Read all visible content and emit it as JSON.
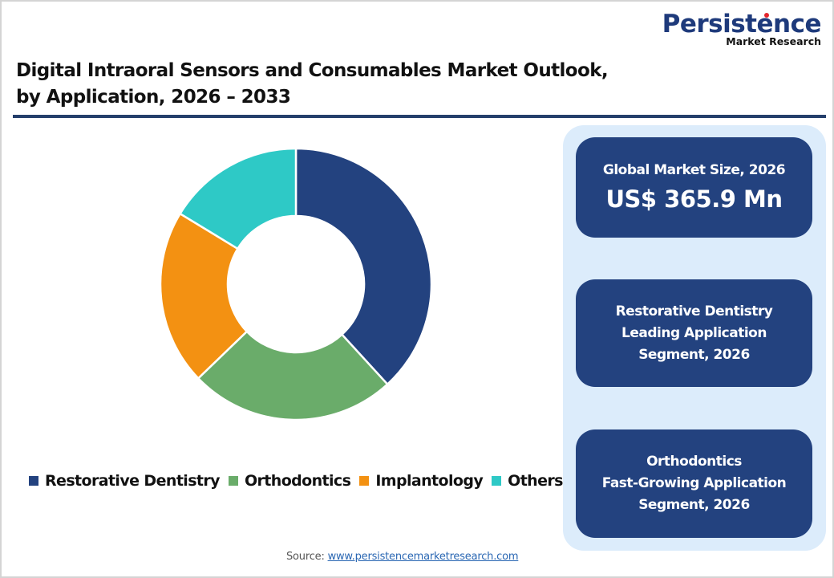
{
  "logo": {
    "main": "Persistence",
    "sub": "Market Research"
  },
  "title": {
    "line1": "Digital Intraoral Sensors and Consumables Market Outlook,",
    "line2": "by Application, 2026 – 2033"
  },
  "chart_data": {
    "type": "pie",
    "subtype": "donut",
    "title": "Digital Intraoral Sensors and Consumables Market Outlook, by Application, 2026 – 2033",
    "categories": [
      "Restorative Dentistry",
      "Orthodontics",
      "Implantology",
      "Others"
    ],
    "values": [
      38.2,
      24.6,
      20.9,
      16.3
    ],
    "unit": "% share (estimated from slice angles)",
    "colors": [
      "#23427f",
      "#6aac6a",
      "#f39112",
      "#2ec9c6"
    ],
    "start_angle": "12 o'clock, clockwise",
    "legend_position": "bottom",
    "data_labels": false
  },
  "legend": [
    {
      "label": "Restorative Dentistry",
      "color": "#23427f"
    },
    {
      "label": "Orthodontics",
      "color": "#6aac6a"
    },
    {
      "label": "Implantology",
      "color": "#f39112"
    },
    {
      "label": "Others",
      "color": "#2ec9c6"
    }
  ],
  "side_panel": {
    "market_size": {
      "label": "Global Market Size, 2026",
      "value": "US$ 365.9 Mn"
    },
    "leading": {
      "line1": "Restorative Dentistry",
      "line2": "Leading Application",
      "line3": "Segment, 2026"
    },
    "fastest": {
      "line1": "Orthodontics",
      "line2": "Fast-Growing Application",
      "line3": "Segment, 2026"
    }
  },
  "source": {
    "prefix": "Source: ",
    "link": "www.persistencemarketresearch.com"
  },
  "colors": {
    "panel_bg": "#dcecfb",
    "card_bg": "#23427f",
    "rule": "#243f6b",
    "brand": "#1e3a7b"
  }
}
